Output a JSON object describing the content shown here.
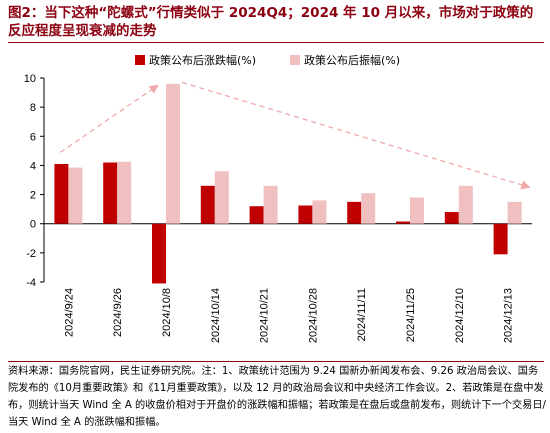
{
  "title": "图2：当下这种“陀螺式”行情类似于 2024Q4；2024 年 10 月以来，市场对于政策的反应程度呈现衰减的走势",
  "footnote": "资料来源：国务院官网，民生证券研究院。注：1、政策统计范围为 9.24 国新办新闻发布会、9.26 政治局会议、国务院发布的《10月重要政策》和《11月重要政策》，以及 12 月的政治局会议和中央经济工作会议。2、若政策是在盘中发布，则统计当天 Wind 全 A 的收盘价相对于开盘价的涨跌幅和振幅；若政策是在盘后或盘前发布，则统计下一个交易日/当天 Wind 全 A 的涨跌幅和振幅。",
  "colors": {
    "title": "#8c0010",
    "series_change": "#c00000",
    "series_amplitude": "#f0c0c0",
    "trend_arrow": "#f0a8a8"
  },
  "chart_data": {
    "type": "bar",
    "categories": [
      "2024/9/24",
      "2024/9/26",
      "2024/10/8",
      "2024/10/14",
      "2024/10/21",
      "2024/10/28",
      "2024/11/11",
      "2024/11/25",
      "2024/12/10",
      "2024/12/13"
    ],
    "series": [
      {
        "name": "政策公布后涨跌幅(%)",
        "values": [
          4.1,
          4.2,
          -4.1,
          2.6,
          1.2,
          1.25,
          1.5,
          0.15,
          0.8,
          -2.1
        ]
      },
      {
        "name": "政策公布后振幅(%)",
        "values": [
          3.85,
          4.25,
          9.6,
          3.6,
          2.6,
          1.6,
          2.1,
          1.8,
          2.6,
          1.5
        ]
      }
    ],
    "yticks": [
      -4,
      -2,
      0,
      2,
      4,
      6,
      8,
      10
    ],
    "ylim": [
      -4,
      10
    ],
    "legend": "top",
    "grid": false,
    "annotations": [
      "dashed trend arrows: rising then declining"
    ]
  }
}
